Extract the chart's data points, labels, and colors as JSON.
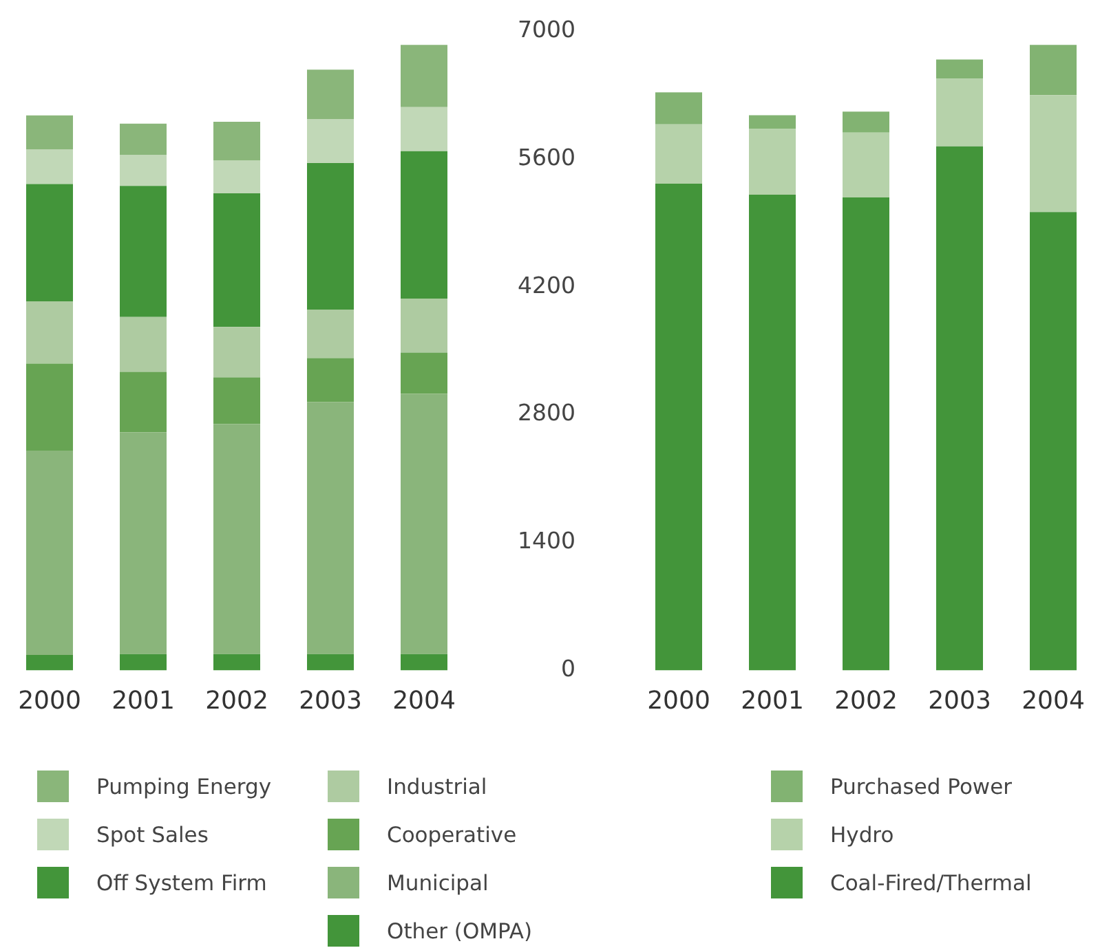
{
  "chart_data": [
    {
      "type": "bar",
      "stacked": true,
      "categories": [
        "2000",
        "2001",
        "2002",
        "2003",
        "2004"
      ],
      "series": [
        {
          "name": "Other (OMPA)",
          "color": "#43953a",
          "values": [
            170,
            180,
            180,
            180,
            180
          ]
        },
        {
          "name": "Municipal",
          "color": "#8ab57b",
          "values": [
            2230,
            2420,
            2510,
            2750,
            2840
          ]
        },
        {
          "name": "Cooperative",
          "color": "#67a453",
          "values": [
            950,
            660,
            510,
            480,
            450
          ]
        },
        {
          "name": "Industrial",
          "color": "#aecba1",
          "values": [
            680,
            600,
            550,
            530,
            590
          ]
        },
        {
          "name": "Off System Firm",
          "color": "#43953a",
          "values": [
            1280,
            1430,
            1460,
            1600,
            1610
          ]
        },
        {
          "name": "Spot Sales",
          "color": "#c1d8b7",
          "values": [
            380,
            340,
            360,
            480,
            480
          ]
        },
        {
          "name": "Pumping Energy",
          "color": "#8ab67a",
          "values": [
            370,
            340,
            420,
            540,
            680
          ]
        }
      ],
      "ylim": [
        0,
        7320
      ],
      "yticks": [
        0,
        1400,
        2800,
        4200,
        5600,
        7000
      ],
      "tick_labels": "x",
      "legend": "bottom"
    },
    {
      "type": "bar",
      "stacked": true,
      "categories": [
        "2000",
        "2001",
        "2002",
        "2003",
        "2004"
      ],
      "series": [
        {
          "name": "Coal-Fired/Thermal",
          "color": "#43953a",
          "values": [
            5330,
            5210,
            5180,
            5740,
            5020
          ]
        },
        {
          "name": "Hydro",
          "color": "#b6d2aa",
          "values": [
            650,
            720,
            710,
            740,
            1280
          ]
        },
        {
          "name": "Purchased Power",
          "color": "#82b372",
          "values": [
            350,
            150,
            230,
            210,
            550
          ]
        }
      ],
      "ylim": [
        0,
        7000
      ],
      "yticks": [
        0,
        1400,
        2800,
        4200,
        5600,
        7000
      ],
      "legend": "bottom"
    }
  ]
}
